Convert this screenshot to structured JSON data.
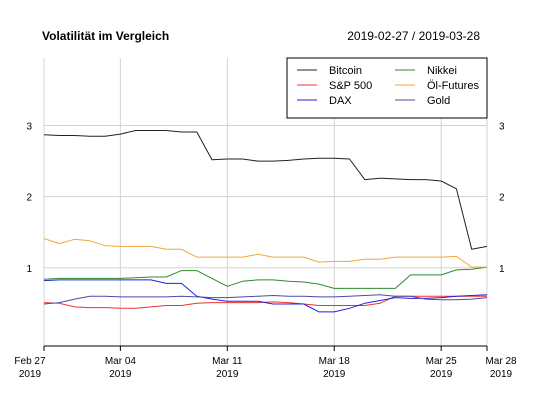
{
  "chart_data": {
    "type": "line",
    "title": "Volatilität im Vergleich",
    "date_range": "2019-02-27 / 2019-03-28",
    "xlabel": "",
    "ylabel": "",
    "ylim": [
      -0.1,
      3.95
    ],
    "y_ticks": [
      1,
      2,
      3
    ],
    "y_tick_labels": [
      "1",
      "2",
      "3"
    ],
    "grid": true,
    "legend_position": "top-right",
    "x_ticks": [
      {
        "date": "2019-02-27",
        "line1": "Feb 27",
        "line2": "2019"
      },
      {
        "date": "2019-03-04",
        "line1": "Mar 04",
        "line2": "2019"
      },
      {
        "date": "2019-03-11",
        "line1": "Mar 11",
        "line2": "2019"
      },
      {
        "date": "2019-03-18",
        "line1": "Mar 18",
        "line2": "2019"
      },
      {
        "date": "2019-03-25",
        "line1": "Mar 25",
        "line2": "2019"
      },
      {
        "date": "2019-03-28",
        "line1": "Mar 28",
        "line2": "2019"
      }
    ],
    "x": [
      "2019-02-27",
      "2019-02-28",
      "2019-03-01",
      "2019-03-02",
      "2019-03-03",
      "2019-03-04",
      "2019-03-05",
      "2019-03-06",
      "2019-03-07",
      "2019-03-08",
      "2019-03-09",
      "2019-03-10",
      "2019-03-11",
      "2019-03-12",
      "2019-03-13",
      "2019-03-14",
      "2019-03-15",
      "2019-03-16",
      "2019-03-17",
      "2019-03-18",
      "2019-03-19",
      "2019-03-20",
      "2019-03-21",
      "2019-03-22",
      "2019-03-23",
      "2019-03-24",
      "2019-03-25",
      "2019-03-26",
      "2019-03-27",
      "2019-03-28"
    ],
    "series": [
      {
        "name": "Bitcoin",
        "color": "#222222",
        "values": [
          2.87,
          2.86,
          2.86,
          2.85,
          2.85,
          2.88,
          2.93,
          2.93,
          2.93,
          2.91,
          2.91,
          2.52,
          2.53,
          2.53,
          2.5,
          2.5,
          2.51,
          2.53,
          2.54,
          2.54,
          2.53,
          2.24,
          2.26,
          2.25,
          2.24,
          2.24,
          2.22,
          2.11,
          1.26,
          1.3
        ]
      },
      {
        "name": "S&P 500",
        "color": "#ee3333",
        "values": [
          0.51,
          0.5,
          0.45,
          0.44,
          0.44,
          0.43,
          0.43,
          0.45,
          0.47,
          0.47,
          0.5,
          0.51,
          0.51,
          0.51,
          0.51,
          0.52,
          0.51,
          0.49,
          0.47,
          0.47,
          0.47,
          0.47,
          0.5,
          0.6,
          0.6,
          0.6,
          0.6,
          0.6,
          0.6,
          0.6
        ]
      },
      {
        "name": "DAX",
        "color": "#2222dd",
        "values": [
          0.82,
          0.83,
          0.83,
          0.83,
          0.83,
          0.83,
          0.83,
          0.83,
          0.78,
          0.78,
          0.6,
          0.56,
          0.53,
          0.53,
          0.53,
          0.49,
          0.49,
          0.49,
          0.38,
          0.38,
          0.43,
          0.5,
          0.54,
          0.58,
          0.57,
          0.57,
          0.58,
          0.6,
          0.61,
          0.62
        ]
      },
      {
        "name": "Nikkei",
        "color": "#2e8b2e",
        "values": [
          0.84,
          0.85,
          0.85,
          0.85,
          0.85,
          0.85,
          0.86,
          0.87,
          0.87,
          0.96,
          0.96,
          0.85,
          0.74,
          0.81,
          0.83,
          0.83,
          0.81,
          0.8,
          0.77,
          0.71,
          0.71,
          0.71,
          0.71,
          0.71,
          0.9,
          0.9,
          0.9,
          0.97,
          0.98,
          1.01
        ]
      },
      {
        "name": "Öl-Futures",
        "color": "#f4a63b",
        "values": [
          1.41,
          1.34,
          1.4,
          1.38,
          1.31,
          1.3,
          1.3,
          1.3,
          1.26,
          1.26,
          1.15,
          1.15,
          1.15,
          1.15,
          1.19,
          1.15,
          1.15,
          1.15,
          1.08,
          1.09,
          1.09,
          1.12,
          1.12,
          1.15,
          1.15,
          1.15,
          1.15,
          1.16,
          1.01,
          1.01
        ]
      },
      {
        "name": "Gold",
        "color": "#4b4ba8",
        "values": [
          0.49,
          0.51,
          0.56,
          0.6,
          0.6,
          0.59,
          0.59,
          0.59,
          0.59,
          0.6,
          0.59,
          0.58,
          0.58,
          0.59,
          0.6,
          0.61,
          0.6,
          0.6,
          0.59,
          0.59,
          0.6,
          0.61,
          0.62,
          0.6,
          0.6,
          0.56,
          0.55,
          0.55,
          0.56,
          0.58
        ]
      }
    ]
  }
}
